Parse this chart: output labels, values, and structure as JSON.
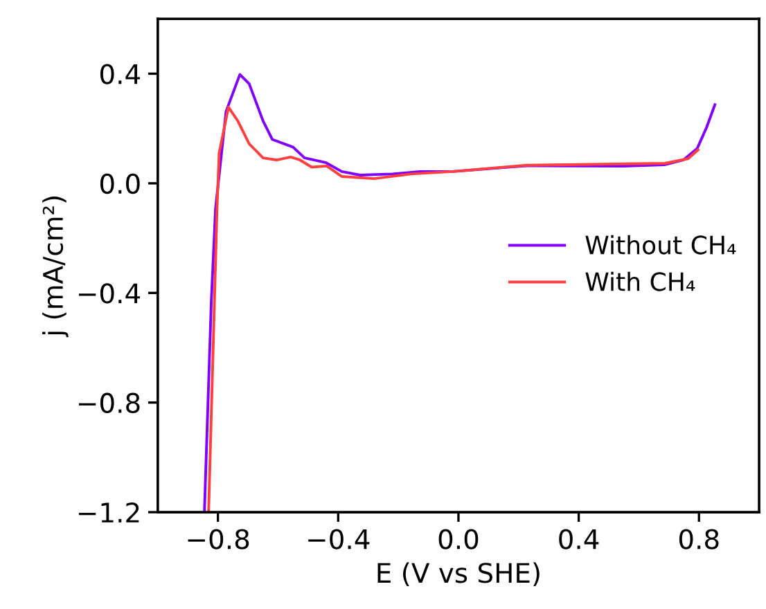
{
  "chart_data": {
    "type": "line",
    "xlabel": "E (V vs SHE)",
    "ylabel": "j (mA/cm²)",
    "xlim": [
      -1.0,
      1.0
    ],
    "ylim": [
      -1.2,
      0.6
    ],
    "xticks": [
      {
        "value": -0.8,
        "label": "−0.8"
      },
      {
        "value": -0.4,
        "label": "−0.4"
      },
      {
        "value": 0.0,
        "label": "0.0"
      },
      {
        "value": 0.4,
        "label": "0.4"
      },
      {
        "value": 0.8,
        "label": "0.8"
      }
    ],
    "yticks": [
      {
        "value": -1.2,
        "label": "−1.2"
      },
      {
        "value": -0.8,
        "label": "−0.8"
      },
      {
        "value": -0.4,
        "label": "−0.4"
      },
      {
        "value": 0.0,
        "label": "0.0"
      },
      {
        "value": 0.4,
        "label": "0.4"
      }
    ],
    "grid": false,
    "legend": "right",
    "marker": "none",
    "line_style": "solid",
    "series": [
      {
        "name": "Without CH₄",
        "color": "#8000ff",
        "x": [
          -0.845,
          -0.822,
          -0.808,
          -0.773,
          -0.727,
          -0.696,
          -0.65,
          -0.619,
          -0.55,
          -0.512,
          -0.442,
          -0.388,
          -0.327,
          -0.22,
          -0.128,
          -0.02,
          0.226,
          0.548,
          0.687,
          0.748,
          0.794,
          0.825,
          0.853
        ],
        "values": [
          -1.2,
          -0.43,
          -0.093,
          0.262,
          0.397,
          0.363,
          0.228,
          0.16,
          0.132,
          0.093,
          0.076,
          0.043,
          0.03,
          0.034,
          0.043,
          0.043,
          0.064,
          0.063,
          0.068,
          0.085,
          0.127,
          0.203,
          0.287
        ]
      },
      {
        "name": "With CH₄",
        "color": "#ff4040",
        "x": [
          -0.831,
          -0.803,
          -0.796,
          -0.765,
          -0.734,
          -0.696,
          -0.65,
          -0.604,
          -0.558,
          -0.527,
          -0.488,
          -0.438,
          -0.388,
          -0.281,
          -0.158,
          -0.02,
          0.226,
          0.687,
          0.764,
          0.797
        ],
        "values": [
          -1.2,
          -0.093,
          0.11,
          0.278,
          0.228,
          0.144,
          0.093,
          0.085,
          0.096,
          0.085,
          0.059,
          0.063,
          0.025,
          0.017,
          0.034,
          0.043,
          0.066,
          0.073,
          0.09,
          0.122
        ]
      }
    ]
  }
}
